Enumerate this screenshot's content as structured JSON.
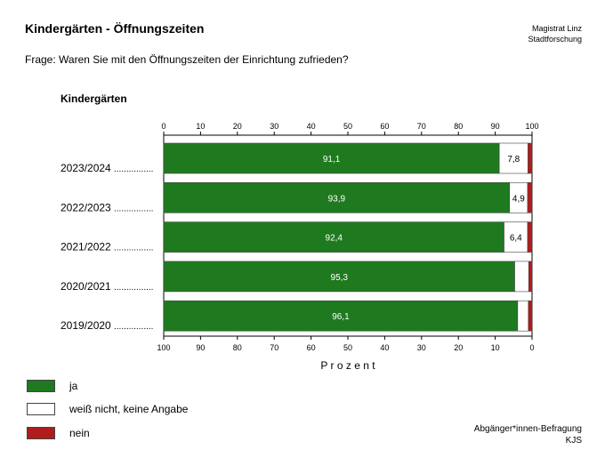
{
  "header": {
    "title": "Kindergärten - Öffnungszeiten",
    "org_line1": "Magistrat Linz",
    "org_line2": "Stadtforschung",
    "question": "Frage: Waren Sie mit den Öffnungszeiten der Einrichtung zufrieden?",
    "subheading": "Kindergärten"
  },
  "footer": {
    "source_line1": "Abgänger*innen-Befragung",
    "source_line2": "KJS"
  },
  "legend": [
    {
      "label": "ja",
      "color": "#1f7a1f"
    },
    {
      "label": "weiß nicht, keine Angabe",
      "color": "#ffffff"
    },
    {
      "label": "nein",
      "color": "#b01c1c"
    }
  ],
  "chart_data": {
    "type": "bar",
    "orientation": "horizontal",
    "stacked": true,
    "categories": [
      "2023/2024",
      "2022/2023",
      "2021/2022",
      "2020/2021",
      "2019/2020"
    ],
    "category_dots": "................",
    "series": [
      {
        "name": "ja",
        "color": "#1f7a1f",
        "values": [
          91.1,
          93.9,
          92.4,
          95.3,
          96.1
        ],
        "labels": [
          "91,1",
          "93,9",
          "92,4",
          "95,3",
          "96,1"
        ]
      },
      {
        "name": "weiß nicht, keine Angabe",
        "color": "#ffffff",
        "values": [
          7.8,
          4.9,
          6.4,
          3.8,
          2.9
        ],
        "labels": [
          "7,8",
          "4,9",
          "6,4",
          "",
          ""
        ]
      },
      {
        "name": "nein",
        "color": "#b01c1c",
        "values": [
          1.1,
          1.2,
          1.2,
          0.9,
          1.0
        ],
        "labels": [
          "",
          "",
          "",
          "",
          ""
        ]
      }
    ],
    "xlim": [
      0,
      100
    ],
    "top_ticks": [
      "0",
      "10",
      "20",
      "30",
      "40",
      "50",
      "60",
      "70",
      "80",
      "90",
      "100"
    ],
    "bottom_ticks": [
      "100",
      "90",
      "80",
      "70",
      "60",
      "50",
      "40",
      "30",
      "20",
      "10",
      "0"
    ],
    "xlabel": "P r o z e n t",
    "legend_position": "bottom-left",
    "grid": false
  }
}
